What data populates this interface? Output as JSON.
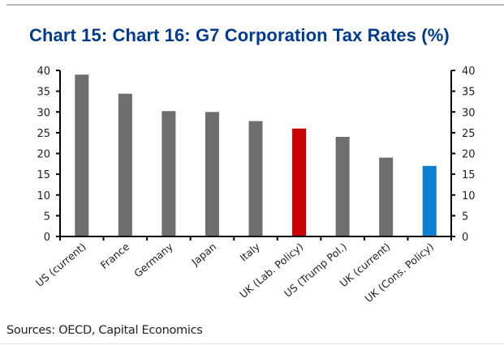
{
  "chart_data": {
    "type": "bar",
    "title": "Chart 15: Chart 16: G7 Corporation Tax Rates (%)",
    "xlabel": "",
    "ylabel": "",
    "ylim": [
      0,
      40
    ],
    "yticks": [
      0,
      5,
      10,
      15,
      20,
      25,
      30,
      35,
      40
    ],
    "y2ticks": [
      0,
      5,
      10,
      15,
      20,
      25,
      30,
      35,
      40
    ],
    "grid": false,
    "legend": "none",
    "categories": [
      "US (current)",
      "France",
      "Germany",
      "Japan",
      "Italy",
      "UK (Lab. Policy)",
      "US (Trump Pol.)",
      "UK (current)",
      "UK (Cons. Policy)"
    ],
    "values": [
      39,
      34.4,
      30.2,
      30,
      27.8,
      26,
      24,
      19,
      17
    ],
    "colors": [
      "#6e6e6e",
      "#6e6e6e",
      "#6e6e6e",
      "#6e6e6e",
      "#6e6e6e",
      "#cc0000",
      "#6e6e6e",
      "#6e6e6e",
      "#0a7fd4"
    ],
    "source": "Sources: OECD, Capital Economics"
  }
}
